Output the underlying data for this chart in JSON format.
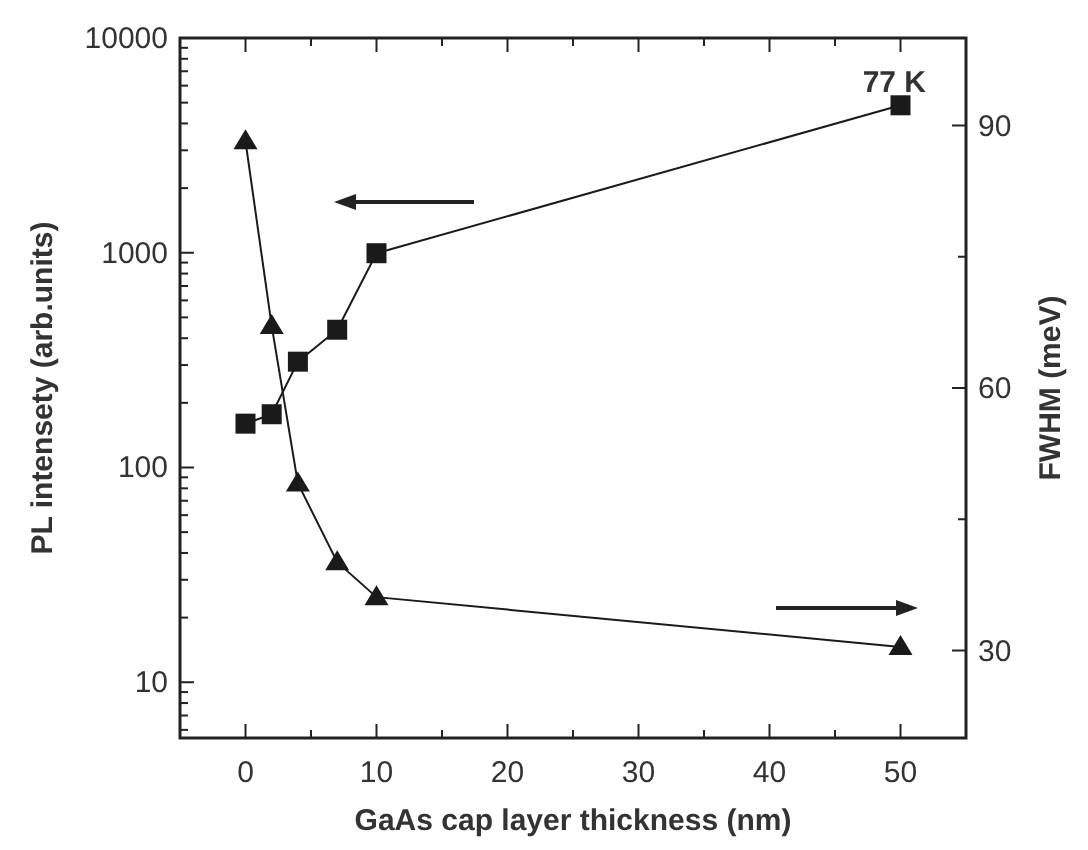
{
  "chart_data": {
    "type": "line",
    "xlabel": "GaAs cap layer thickness (nm)",
    "ylabel": "PL intensety (arb.units)",
    "y2label": "FWHM (meV)",
    "log": "y",
    "grid": false,
    "xlim": [
      -5,
      55
    ],
    "xticks": [
      0,
      {
        "value": 5,
        "label": null
      },
      10,
      {
        "value": 15,
        "label": null
      },
      20,
      {
        "value": 25,
        "label": null
      },
      30,
      {
        "value": 35,
        "label": null
      },
      40,
      {
        "value": 45,
        "label": null
      },
      50
    ],
    "ylim": [
      5.5,
      10000
    ],
    "yticks": [
      {
        "value": 6,
        "label": null
      },
      {
        "value": 7,
        "label": null
      },
      {
        "value": 8,
        "label": null
      },
      {
        "value": 9,
        "label": null
      },
      10,
      {
        "value": 20,
        "label": null
      },
      {
        "value": 30,
        "label": null
      },
      {
        "value": 40,
        "label": null
      },
      {
        "value": 50,
        "label": null
      },
      {
        "value": 60,
        "label": null
      },
      {
        "value": 70,
        "label": null
      },
      {
        "value": 80,
        "label": null
      },
      {
        "value": 90,
        "label": null
      },
      100,
      {
        "value": 200,
        "label": null
      },
      {
        "value": 300,
        "label": null
      },
      {
        "value": 400,
        "label": null
      },
      {
        "value": 500,
        "label": null
      },
      {
        "value": 600,
        "label": null
      },
      {
        "value": 700,
        "label": null
      },
      {
        "value": 800,
        "label": null
      },
      {
        "value": 900,
        "label": null
      },
      1000,
      {
        "value": 2000,
        "label": null
      },
      {
        "value": 3000,
        "label": null
      },
      {
        "value": 4000,
        "label": null
      },
      {
        "value": 5000,
        "label": null
      },
      {
        "value": 6000,
        "label": null
      },
      {
        "value": 7000,
        "label": null
      },
      {
        "value": 8000,
        "label": null
      },
      {
        "value": 9000,
        "label": null
      },
      10000
    ],
    "y2lim": [
      20,
      100
    ],
    "y2ticks": [
      30,
      {
        "value": 45,
        "label": null
      },
      60,
      {
        "value": 75,
        "label": null
      },
      90
    ],
    "x": [
      0,
      2,
      4,
      7,
      10,
      50
    ],
    "series": [
      {
        "color": "#1a1a1a",
        "marker": "square",
        "values": [
          160,
          177,
          311,
          438,
          995,
          4860
        ]
      },
      {
        "color": "#1a1a1a",
        "marker": "triangle",
        "axis": "y2",
        "values": [
          88.2,
          67.1,
          49.1,
          40.1,
          36.1,
          30.4
        ]
      }
    ],
    "annotations": [
      "77 K"
    ]
  }
}
